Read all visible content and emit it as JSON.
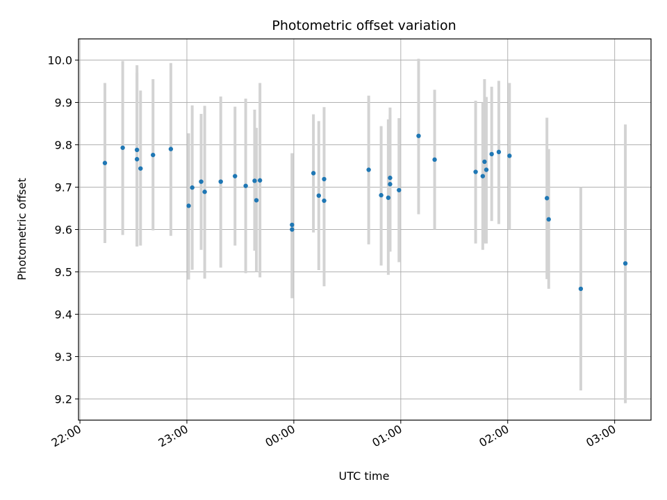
{
  "chart_data": {
    "type": "scatter",
    "title": "Photometric offset variation",
    "xlabel": "UTC time",
    "ylabel": "Photometric offset",
    "x_tick_labels": [
      "22:00",
      "23:00",
      "00:00",
      "01:00",
      "02:00",
      "03:00"
    ],
    "x_tick_minutes": [
      0,
      60,
      120,
      180,
      240,
      300
    ],
    "xlim_minutes_after_22_00": [
      -0.8,
      320.4
    ],
    "y_tick_labels": [
      "9.2",
      "9.3",
      "9.4",
      "9.5",
      "9.6",
      "9.7",
      "9.8",
      "9.9",
      "10.0"
    ],
    "y_tick_values": [
      9.2,
      9.3,
      9.4,
      9.5,
      9.6,
      9.7,
      9.8,
      9.9,
      10.0
    ],
    "ylim": [
      9.15,
      10.05
    ],
    "grid": true,
    "legend": "none",
    "colors": {
      "point": "#1f77b4",
      "error_bar": "#d3d3d3",
      "grid": "#b0b0b0",
      "axes": "#000000"
    },
    "series": [
      {
        "x_time_utc": [
          "22:14",
          "22:24",
          "22:32",
          "22:32",
          "22:34",
          "22:41",
          "22:51",
          "23:01",
          "23:03",
          "23:08",
          "23:10",
          "23:19",
          "23:27",
          "23:33",
          "23:38",
          "23:39",
          "23:41",
          "23:59",
          "23:59",
          "00:11",
          "00:14",
          "00:17",
          "00:17",
          "00:42",
          "00:49",
          "00:53",
          "00:54",
          "00:54",
          "00:59",
          "01:10",
          "01:19",
          "01:42",
          "01:46",
          "01:47",
          "01:48",
          "01:51",
          "01:55",
          "02:01",
          "02:22",
          "02:23",
          "02:41",
          "03:06"
        ],
        "y": [
          9.757,
          9.793,
          9.766,
          9.788,
          9.744,
          9.776,
          9.79,
          9.656,
          9.699,
          9.713,
          9.689,
          9.713,
          9.726,
          9.703,
          9.715,
          9.669,
          9.716,
          9.611,
          9.6,
          9.733,
          9.68,
          9.719,
          9.668,
          9.741,
          9.681,
          9.675,
          9.722,
          9.707,
          9.693,
          9.821,
          9.765,
          9.736,
          9.726,
          9.76,
          9.741,
          9.778,
          9.783,
          9.774,
          9.674,
          9.624,
          9.46,
          9.52
        ],
        "yerr_low": [
          9.568,
          9.587,
          9.56,
          9.56,
          9.562,
          9.598,
          9.585,
          9.482,
          9.505,
          9.552,
          9.484,
          9.51,
          9.562,
          9.497,
          9.55,
          9.5,
          9.487,
          9.438,
          9.438,
          9.593,
          9.504,
          9.55,
          9.466,
          9.565,
          9.515,
          9.493,
          9.548,
          9.548,
          9.523,
          9.636,
          9.6,
          9.567,
          9.552,
          9.567,
          9.567,
          9.62,
          9.613,
          9.6,
          9.483,
          9.46,
          9.22,
          9.19
        ],
        "yerr_high": [
          9.946,
          9.998,
          9.97,
          9.988,
          9.928,
          9.955,
          9.993,
          9.827,
          9.893,
          9.873,
          9.892,
          9.914,
          9.89,
          9.909,
          9.883,
          9.84,
          9.946,
          9.78,
          9.78,
          9.872,
          9.856,
          9.884,
          9.889,
          9.916,
          9.844,
          9.86,
          9.888,
          9.872,
          9.863,
          10.003,
          9.93,
          9.904,
          9.9,
          9.955,
          9.913,
          9.937,
          9.951,
          9.946,
          9.864,
          9.79,
          9.7,
          9.848
        ]
      }
    ]
  }
}
